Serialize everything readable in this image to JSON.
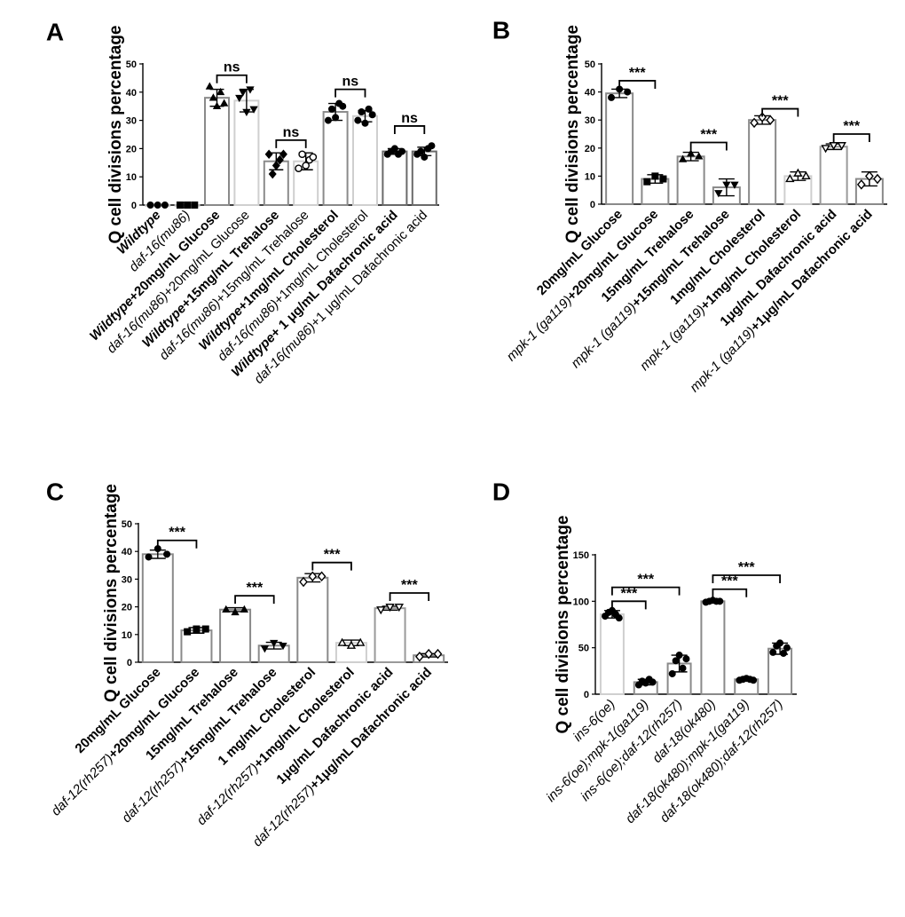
{
  "chart_data": [
    {
      "panel": "A",
      "type": "bar",
      "ylabel": "Q cell divisions percentage",
      "ylim": [
        0,
        50
      ],
      "yticks": [
        0,
        10,
        20,
        30,
        40,
        50
      ],
      "categories": [
        [
          "Wildtype"
        ],
        [
          "daf-16",
          "(mu86)"
        ],
        [
          "Wildtype",
          "+20mg/mL Glucose"
        ],
        [
          "daf-16",
          "(mu86)",
          "+20mg/mL Glucose"
        ],
        [
          "Wildtype",
          "+15mg/mL Trehalose"
        ],
        [
          "daf-16",
          "(mu86)",
          "+15mg/mL Trehalose"
        ],
        [
          "Wildtype",
          "+1mg/mL Cholesterol"
        ],
        [
          "daf-16",
          "(mu86)",
          "+1mg/mL Cholesterol"
        ],
        [
          "Wildtype",
          "+ 1 μg/mL Dafachronic acid"
        ],
        [
          "daf-16",
          "(mu86)",
          "+1 μg/mL Dafachronic acid"
        ]
      ],
      "values": [
        0,
        0,
        38,
        37,
        15.5,
        15.5,
        33,
        31.5,
        19,
        19
      ],
      "errors": [
        0,
        0,
        3,
        4,
        3,
        3,
        3,
        2,
        1,
        1.5
      ],
      "points": [
        [
          0,
          0,
          0
        ],
        [
          0,
          0,
          0
        ],
        [
          42,
          38,
          35,
          40,
          36
        ],
        [
          38,
          40,
          33,
          41,
          34
        ],
        [
          18,
          11,
          14,
          16,
          18
        ],
        [
          13,
          18,
          14,
          16,
          17
        ],
        [
          30,
          34,
          31,
          36,
          35
        ],
        [
          30,
          33,
          29,
          34,
          32
        ],
        [
          18,
          19,
          20,
          18,
          19
        ],
        [
          18,
          19,
          17,
          20,
          21
        ]
      ],
      "comparisons": [
        {
          "from": 2,
          "to": 3,
          "label": "ns",
          "y": 46
        },
        {
          "from": 4,
          "to": 5,
          "label": "ns",
          "y": 23
        },
        {
          "from": 6,
          "to": 7,
          "label": "ns",
          "y": 41
        },
        {
          "from": 8,
          "to": 9,
          "label": "ns",
          "y": 28
        }
      ]
    },
    {
      "panel": "B",
      "type": "bar",
      "ylabel": "Q cell divisions percentage",
      "ylim": [
        0,
        50
      ],
      "yticks": [
        0,
        10,
        20,
        30,
        40,
        50
      ],
      "categories": [
        [
          "20mg/mL Glucose"
        ],
        [
          "mpk-1 (ga119)",
          "+20mg/mL Glucose"
        ],
        [
          "15mg/mL Trehalose"
        ],
        [
          "mpk-1 (ga119)",
          "+15mg/mL Trehalose"
        ],
        [
          "1mg/mL Cholesterol"
        ],
        [
          "mpk-1 (ga119)",
          "+1mg/mL Cholesterol"
        ],
        [
          "1μg/mL Dafachronic acid"
        ],
        [
          "mpk-1 (ga119)",
          "+1μg/mL Dafachronic acid"
        ]
      ],
      "values": [
        39.5,
        9,
        17,
        6,
        30,
        10,
        20.5,
        9
      ],
      "errors": [
        1.5,
        1.5,
        1.5,
        3,
        1.5,
        1.5,
        1,
        2.5
      ],
      "points": [
        [
          38,
          41,
          40
        ],
        [
          8,
          10,
          9
        ],
        [
          16,
          18,
          17
        ],
        [
          4,
          7,
          7
        ],
        [
          29,
          31,
          30
        ],
        [
          9,
          11,
          10
        ],
        [
          20,
          21,
          21
        ],
        [
          7,
          10,
          9
        ]
      ],
      "comparisons": [
        {
          "from": 0,
          "to": 1,
          "label": "***",
          "y": 44
        },
        {
          "from": 2,
          "to": 3,
          "label": "***",
          "y": 22
        },
        {
          "from": 4,
          "to": 5,
          "label": "***",
          "y": 34
        },
        {
          "from": 6,
          "to": 7,
          "label": "***",
          "y": 25
        }
      ]
    },
    {
      "panel": "C",
      "type": "bar",
      "ylabel": "Q cell divisions percentage",
      "ylim": [
        0,
        50
      ],
      "yticks": [
        0,
        10,
        20,
        30,
        40,
        50
      ],
      "categories": [
        [
          "20mg/mL Glucose"
        ],
        [
          "daf-12",
          "(rh257)",
          "+20mg/mL Glucose"
        ],
        [
          "15mg/mL Trehalose"
        ],
        [
          "daf-12",
          "(rh257)",
          "+15mg/mL Trehalose"
        ],
        [
          "1 mg/mL Cholesterol"
        ],
        [
          "daf-12",
          "(rh257)",
          "+1mg/mL Cholesterol"
        ],
        [
          "1μg/mL Dafachronic acid"
        ],
        [
          "daf-12",
          "(rh257)",
          "+1μg/mL Dafachronic acid"
        ]
      ],
      "values": [
        39,
        11.5,
        19,
        6,
        30.5,
        7,
        19.5,
        2.5
      ],
      "errors": [
        1.5,
        1,
        0.7,
        1.2,
        1.5,
        1,
        0.7,
        0.6
      ],
      "points": [
        [
          38,
          41,
          39
        ],
        [
          11,
          12,
          12
        ],
        [
          19,
          18,
          19
        ],
        [
          5,
          7,
          6
        ],
        [
          29,
          31,
          31
        ],
        [
          7,
          6,
          7
        ],
        [
          19,
          20,
          20
        ],
        [
          2,
          3,
          3
        ]
      ],
      "comparisons": [
        {
          "from": 0,
          "to": 1,
          "label": "***",
          "y": 44
        },
        {
          "from": 2,
          "to": 3,
          "label": "***",
          "y": 24
        },
        {
          "from": 4,
          "to": 5,
          "label": "***",
          "y": 36
        },
        {
          "from": 6,
          "to": 7,
          "label": "***",
          "y": 25
        }
      ]
    },
    {
      "panel": "D",
      "type": "bar",
      "ylabel": "Q cell divisions percentage",
      "ylim": [
        0,
        150
      ],
      "yticks": [
        0,
        50,
        100,
        150
      ],
      "categories": [
        [
          "ins-6",
          "(oe)"
        ],
        [
          "ins-6",
          "(oe);",
          "mpk-1",
          "(ga119)"
        ],
        [
          "ins-6",
          "(oe);",
          "daf-12",
          "(rh257)"
        ],
        [
          "daf-18",
          "(ok480)"
        ],
        [
          "daf-18",
          "(ok480);",
          "mpk-1",
          "(ga119)"
        ],
        [
          "daf-18",
          "(ok480);",
          "daf-12",
          "(rh257)"
        ]
      ],
      "values": [
        86,
        13,
        33,
        100,
        16,
        49
      ],
      "errors": [
        4,
        3,
        9,
        1,
        1.5,
        6
      ],
      "points": [
        [
          84,
          88,
          90,
          86,
          82
        ],
        [
          10,
          14,
          12,
          16,
          13
        ],
        [
          22,
          36,
          42,
          28,
          38
        ],
        [
          99,
          100,
          101,
          100,
          100
        ],
        [
          15,
          16,
          17,
          16,
          15
        ],
        [
          45,
          52,
          55,
          44,
          50
        ]
      ],
      "comparisons": [
        {
          "from": 0,
          "to": 1,
          "label": "***",
          "y": 100
        },
        {
          "from": 0,
          "to": 2,
          "label": "***",
          "y": 115
        },
        {
          "from": 3,
          "to": 4,
          "label": "***",
          "y": 113
        },
        {
          "from": 3,
          "to": 5,
          "label": "***",
          "y": 128
        }
      ]
    }
  ]
}
